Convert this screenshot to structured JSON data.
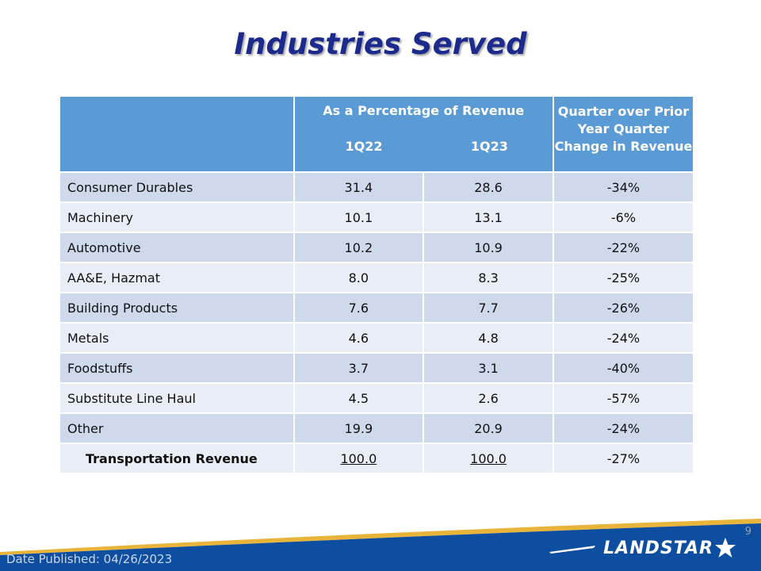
{
  "title": "Industries Served",
  "table": {
    "header": {
      "pct_title": "As a Percentage of Revenue",
      "year1": "1Q22",
      "year2": "1Q23",
      "change_line1": "Quarter over Prior",
      "change_line2": "Year Quarter",
      "change_line3": "Change in Revenue"
    },
    "rows": [
      {
        "name": "Consumer Durables",
        "q1_22": "31.4",
        "q1_23": "28.6",
        "change": "-34%"
      },
      {
        "name": "Machinery",
        "q1_22": "10.1",
        "q1_23": "13.1",
        "change": "-6%"
      },
      {
        "name": "Automotive",
        "q1_22": "10.2",
        "q1_23": "10.9",
        "change": "-22%"
      },
      {
        "name": "AA&E, Hazmat",
        "q1_22": "8.0",
        "q1_23": "8.3",
        "change": "-25%"
      },
      {
        "name": "Building Products",
        "q1_22": "7.6",
        "q1_23": "7.7",
        "change": "-26%"
      },
      {
        "name": "Metals",
        "q1_22": "4.6",
        "q1_23": "4.8",
        "change": "-24%"
      },
      {
        "name": "Foodstuffs",
        "q1_22": "3.7",
        "q1_23": "3.1",
        "change": "-40%"
      },
      {
        "name": "Substitute Line Haul",
        "q1_22": "4.5",
        "q1_23": "2.6",
        "change": "-57%"
      },
      {
        "name": "Other",
        "q1_22": "19.9",
        "q1_23": "20.9",
        "change": "-24%"
      }
    ],
    "total": {
      "name": "Transportation Revenue",
      "q1_22": "100.0",
      "q1_23": "100.0",
      "change": "-27%"
    }
  },
  "footer": {
    "date_published": "Date Published:  04/26/2023",
    "page_number": "9",
    "logo_text": "LANDSTAR",
    "logo_icon": "star-icon"
  },
  "colors": {
    "title": "#1b2a8c",
    "header_bg": "#5b9bd5",
    "row_dark": "#cfd9ec",
    "row_light": "#e8edf6",
    "footer_blue": "#0d4ea0",
    "footer_gold": "#e8b53a"
  }
}
